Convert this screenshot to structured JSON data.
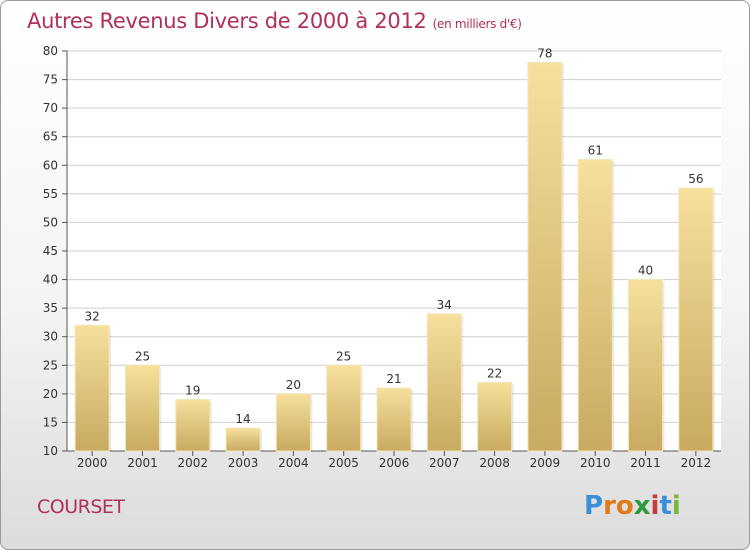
{
  "chart_data": {
    "type": "bar",
    "title": "Autres Revenus Divers de 2000 à 2012",
    "subtitle": "(en milliers d'€)",
    "categories": [
      "2000",
      "2001",
      "2002",
      "2003",
      "2004",
      "2005",
      "2006",
      "2007",
      "2008",
      "2009",
      "2010",
      "2011",
      "2012"
    ],
    "values": [
      32,
      25,
      19,
      14,
      20,
      25,
      21,
      34,
      22,
      78,
      61,
      40,
      56
    ],
    "ylim": [
      10,
      80
    ],
    "yticks": [
      10,
      15,
      20,
      25,
      30,
      35,
      40,
      45,
      50,
      55,
      60,
      65,
      70,
      75,
      80
    ],
    "grid": true,
    "bar_color": "#e8cc84"
  },
  "footer": {
    "location": "COURSET"
  },
  "logo": {
    "letters": [
      "P",
      "r",
      "o",
      "x",
      "i",
      "t",
      "i"
    ],
    "colors": [
      "#3b8fd6",
      "#e27a1a",
      "#e27a1a",
      "#2e9a3e",
      "#c83a3a",
      "#3b8fd6",
      "#7ab83a"
    ]
  },
  "colors": {
    "title": "#b0305a",
    "grid": "#cfcfcf",
    "axis": "#555555"
  }
}
